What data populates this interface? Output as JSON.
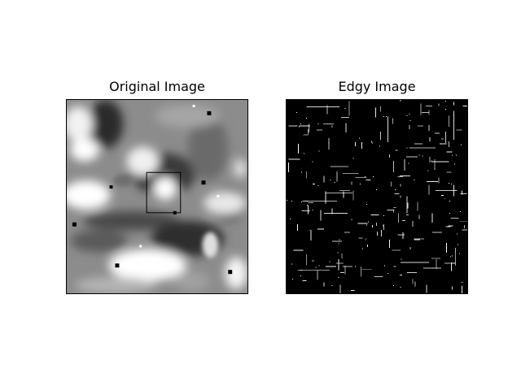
{
  "figure": {
    "panels": [
      {
        "title": "Original Image"
      },
      {
        "title": "Edgy Image"
      }
    ]
  },
  "colors": {
    "background": "#ffffff",
    "frame": "#000000",
    "edge_map_background": "#000000",
    "edge_pixels": "#ffffff"
  }
}
